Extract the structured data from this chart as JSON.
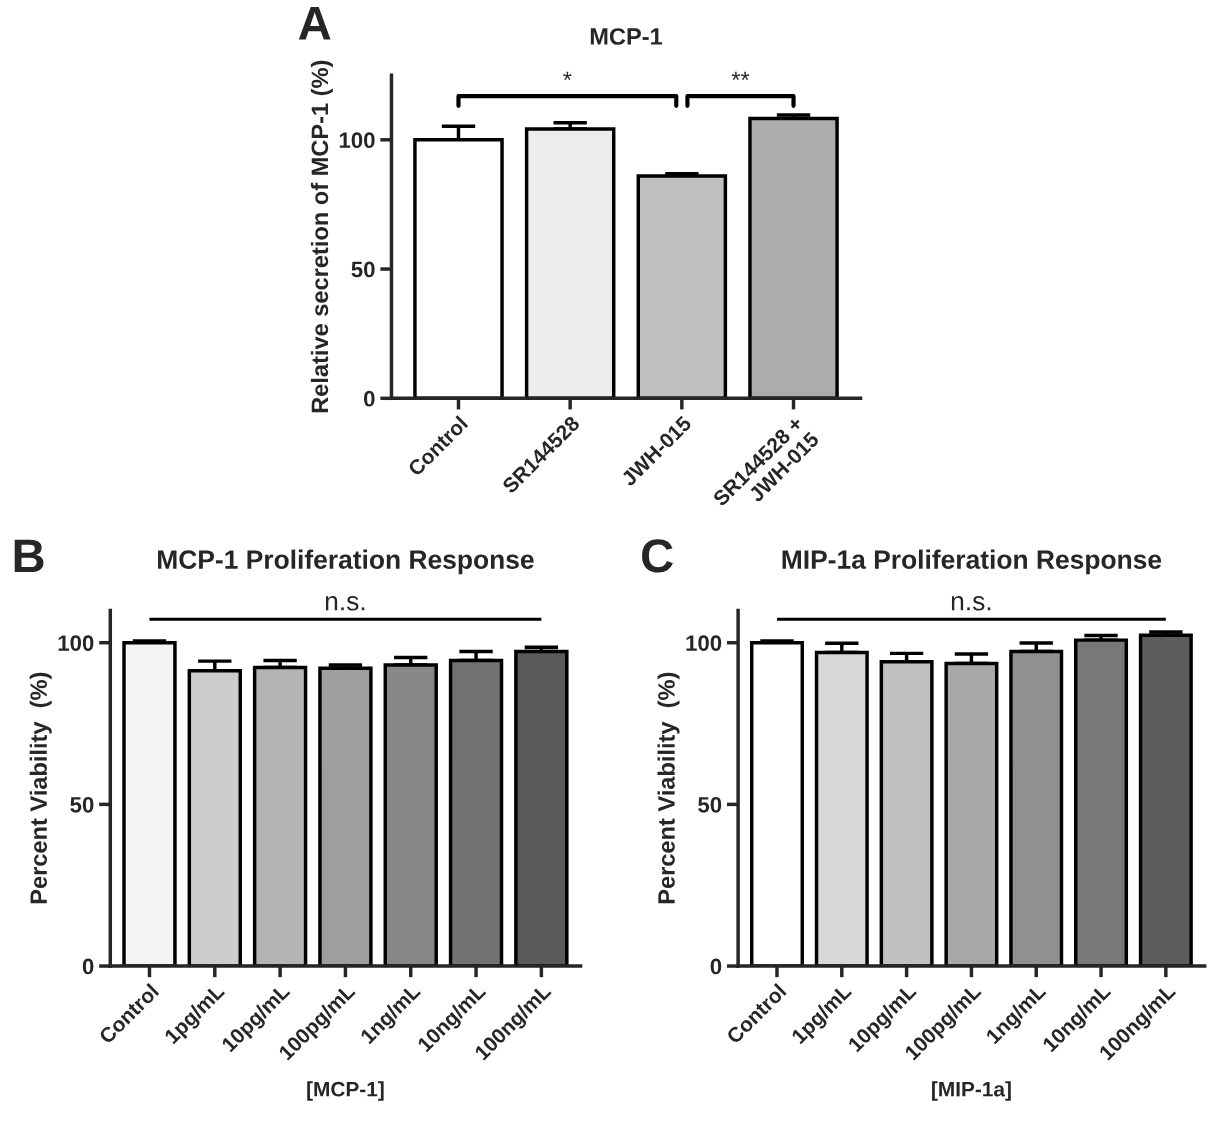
{
  "chart_data": [
    {
      "type": "bar",
      "title": "MCP-1",
      "ylabel": "Relative secretion of MCP-1 (%)",
      "categories": [
        "Control",
        "SR144528",
        "JWH-015",
        "SR144528 +\nJWH-015"
      ],
      "values": [
        100,
        104.2,
        86,
        108.2
      ],
      "colors": [
        "#ffffff",
        "#ececec",
        "#c0c0c0",
        "#acacac"
      ],
      "errors": [
        [
          100,
          105.2
        ],
        [
          104.2,
          106.6
        ],
        [
          86,
          86.9
        ],
        [
          108.2,
          109.6
        ]
      ],
      "ylim": [
        0,
        125
      ],
      "yticks": [
        0,
        50,
        100
      ],
      "grid": false,
      "annotations": [
        "A",
        "*",
        "**"
      ]
    },
    {
      "type": "bar",
      "title": "MCP-1 Proliferation Response",
      "ylabel": "Percent Viability  (%)",
      "xlabel": "[MCP-1]",
      "categories": [
        "Control",
        "1pg/mL",
        "10pg/mL",
        "100pg/mL",
        "1ng/mL",
        "10ng/mL",
        "100ng/mL"
      ],
      "values": [
        100,
        91.3,
        92.3,
        92.1,
        93.1,
        94.5,
        97.3
      ],
      "colors": [
        "#f4f4f4",
        "#cdcdcd",
        "#b4b4b4",
        "#9e9e9e",
        "#888888",
        "#727272",
        "#5a5a5a"
      ],
      "errors": [
        [
          100,
          100.5
        ],
        [
          91.3,
          94.3
        ],
        [
          92.3,
          94.5
        ],
        [
          92.1,
          93.1
        ],
        [
          93.1,
          95.4
        ],
        [
          94.5,
          97.3
        ],
        [
          97.3,
          98.6
        ]
      ],
      "ylim": [
        0,
        110
      ],
      "yticks": [
        0,
        50,
        100
      ],
      "grid": false,
      "annotations": [
        "B",
        "n.s."
      ]
    },
    {
      "type": "bar",
      "title": "MIP-1a Proliferation Response",
      "ylabel": "Percent Viability  (%)",
      "xlabel": "[MIP-1a]",
      "categories": [
        "Control",
        "1pg/mL",
        "10pg/mL",
        "100pg/mL",
        "1ng/mL",
        "10ng/mL",
        "100ng/mL"
      ],
      "values": [
        100,
        97,
        94.1,
        93.6,
        97.3,
        100.8,
        102.3
      ],
      "colors": [
        "#ffffff",
        "#d8d8d8",
        "#c0c0c0",
        "#a8a8a8",
        "#909090",
        "#787878",
        "#5c5c5c"
      ],
      "errors": [
        [
          100,
          100.5
        ],
        [
          97,
          99.8
        ],
        [
          94.1,
          96.7
        ],
        [
          93.6,
          96.5
        ],
        [
          97.3,
          99.9
        ],
        [
          100.8,
          102.2
        ],
        [
          102.3,
          103.3
        ]
      ],
      "ylim": [
        0,
        110
      ],
      "yticks": [
        0,
        50,
        100
      ],
      "grid": false,
      "annotations": [
        "C",
        "n.s."
      ]
    }
  ]
}
